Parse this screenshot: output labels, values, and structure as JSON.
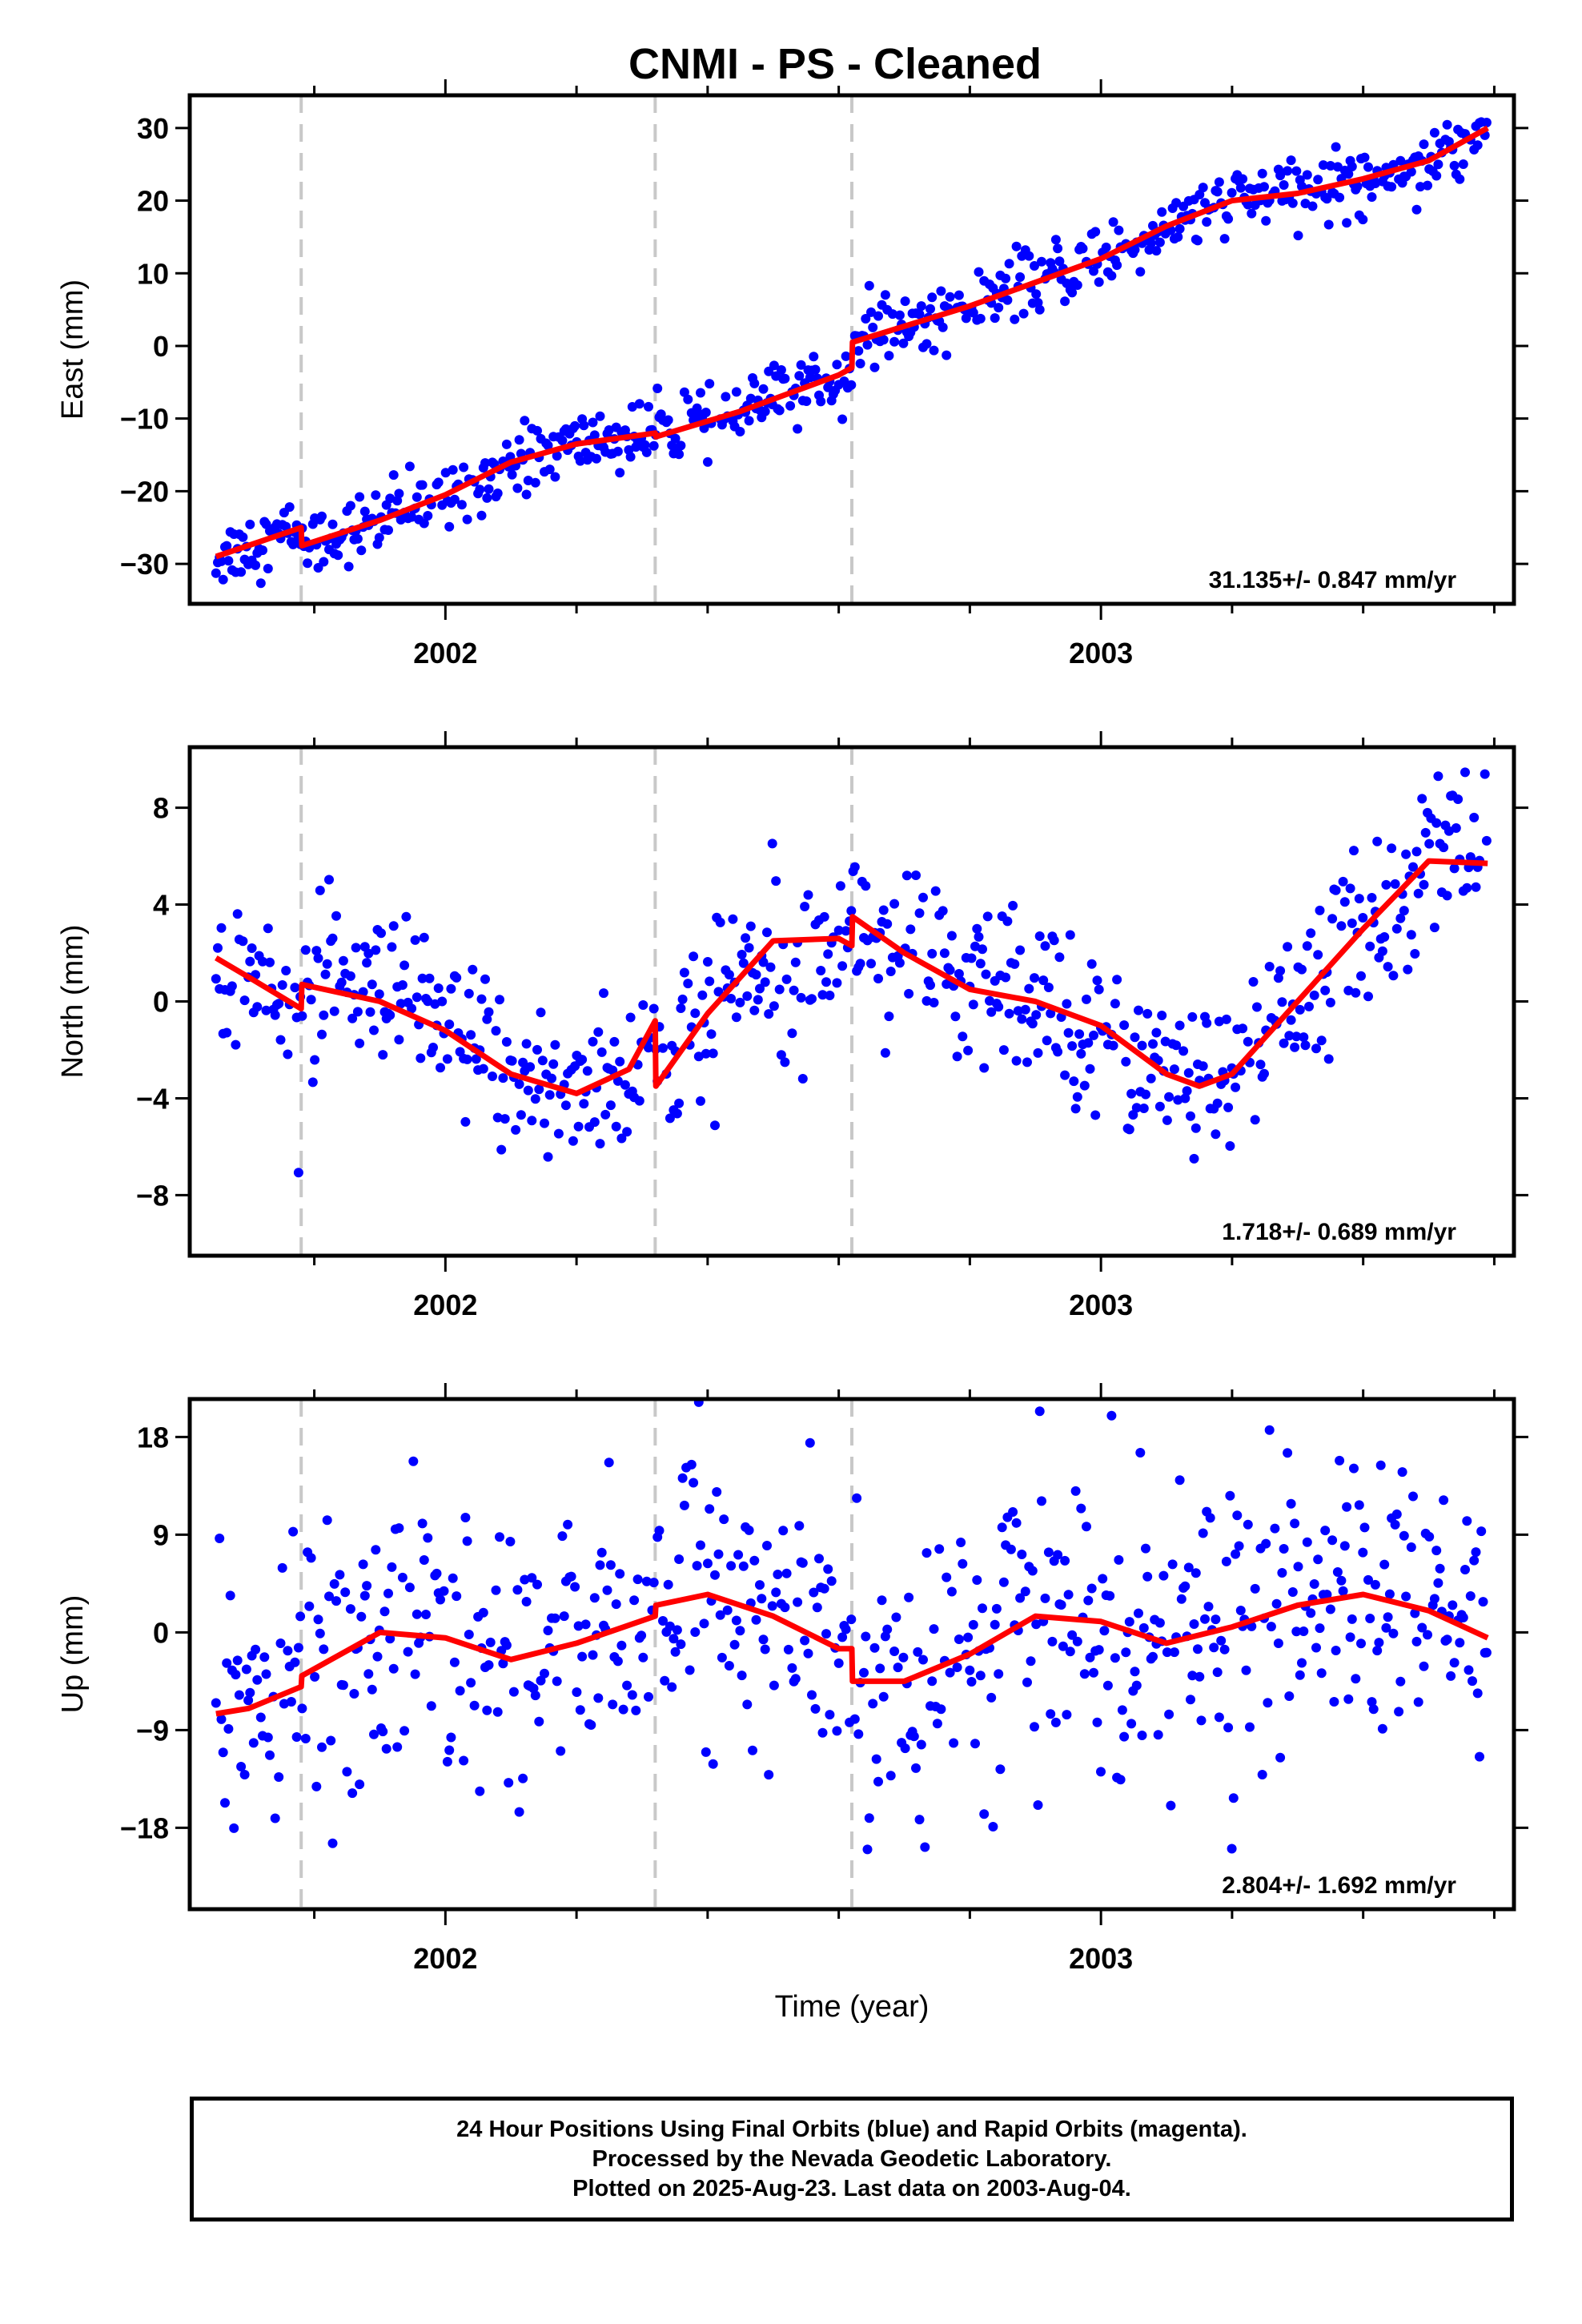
{
  "title": "CNMI  - PS - Cleaned",
  "xlabel": "Time (year)",
  "colors": {
    "points": "#0000ff",
    "model": "#ff0000",
    "steps": "#c8c8c8",
    "frame": "#000000"
  },
  "chart_data": [
    {
      "type": "scatter",
      "component": "East",
      "ylabel": "East (mm)",
      "xlim": [
        2001.61,
        2003.63
      ],
      "ylim": [
        -35.5,
        34.5
      ],
      "x_ticks": [
        2002,
        2003
      ],
      "x_tick_labels": [
        "2002",
        "2003"
      ],
      "y_ticks": [
        -30,
        -20,
        -10,
        0,
        10,
        20,
        30
      ],
      "y_tick_labels": [
        "−30",
        "−20",
        "−10",
        "0",
        "10",
        "20",
        "30"
      ],
      "step_epochs": [
        2001.78,
        2002.32,
        2002.62
      ],
      "rate_text": "31.135+/- 0.847 mm/yr",
      "noise_sd": 2.2,
      "model_x": [
        2001.65,
        2001.78,
        2001.781,
        2001.9,
        2002.0,
        2002.1,
        2002.2,
        2002.32,
        2002.321,
        2002.45,
        2002.6,
        2002.62,
        2002.621,
        2002.8,
        2003.0,
        2003.1,
        2003.2,
        2003.3,
        2003.4,
        2003.5,
        2003.59
      ],
      "model_y": [
        -29,
        -25,
        -27.5,
        -24,
        -20.5,
        -16,
        -13.5,
        -12,
        -12.5,
        -9,
        -4,
        -3,
        0.5,
        5.5,
        12,
        16.5,
        20,
        21,
        23,
        25.5,
        30
      ]
    },
    {
      "type": "scatter",
      "component": "North",
      "ylabel": "North (mm)",
      "xlim": [
        2001.61,
        2003.63
      ],
      "ylim": [
        -10.5,
        10.5
      ],
      "x_ticks": [
        2002,
        2003
      ],
      "x_tick_labels": [
        "2002",
        "2003"
      ],
      "y_ticks": [
        -8,
        -4,
        0,
        4,
        8
      ],
      "y_tick_labels": [
        "−8",
        "−4",
        "0",
        "4",
        "8"
      ],
      "step_epochs": [
        2001.78,
        2002.32,
        2002.62
      ],
      "rate_text": "1.718+/- 0.689 mm/yr",
      "noise_sd": 1.7,
      "model_x": [
        2001.65,
        2001.7,
        2001.78,
        2001.781,
        2001.9,
        2002.0,
        2002.1,
        2002.2,
        2002.28,
        2002.32,
        2002.321,
        2002.4,
        2002.5,
        2002.6,
        2002.62,
        2002.621,
        2002.7,
        2002.8,
        2002.9,
        2003.0,
        2003.1,
        2003.15,
        2003.2,
        2003.3,
        2003.4,
        2003.5,
        2003.59
      ],
      "model_y": [
        1.8,
        1.0,
        -0.3,
        0.7,
        0.0,
        -1.2,
        -3.0,
        -3.8,
        -2.8,
        -0.8,
        -3.5,
        -0.5,
        2.5,
        2.6,
        2.3,
        3.5,
        2.0,
        0.5,
        0.0,
        -1.0,
        -3.0,
        -3.5,
        -3.0,
        0.0,
        3.0,
        5.8,
        5.7
      ]
    },
    {
      "type": "scatter",
      "component": "Up",
      "ylabel": "Up (mm)",
      "xlim": [
        2001.61,
        2003.63
      ],
      "ylim": [
        -25.5,
        21.5
      ],
      "x_ticks": [
        2002,
        2003
      ],
      "x_tick_labels": [
        "2002",
        "2003"
      ],
      "y_ticks": [
        -18,
        -9,
        0,
        9,
        18
      ],
      "y_tick_labels": [
        "−18",
        "−9",
        "0",
        "9",
        "18"
      ],
      "step_epochs": [
        2001.78,
        2002.32,
        2002.62
      ],
      "rate_text": "2.804+/- 1.692 mm/yr",
      "noise_sd": 6.5,
      "model_x": [
        2001.65,
        2001.7,
        2001.78,
        2001.781,
        2001.9,
        2002.0,
        2002.1,
        2002.2,
        2002.32,
        2002.321,
        2002.4,
        2002.5,
        2002.6,
        2002.62,
        2002.621,
        2002.7,
        2002.8,
        2002.9,
        2003.0,
        2003.1,
        2003.2,
        2003.3,
        2003.4,
        2003.5,
        2003.59
      ],
      "model_y": [
        -7.5,
        -7.0,
        -5.0,
        -4.0,
        0.0,
        -0.5,
        -2.5,
        -1.0,
        1.5,
        2.5,
        3.5,
        1.5,
        -1.5,
        -1.5,
        -4.5,
        -4.5,
        -2.0,
        1.5,
        1.0,
        -1.0,
        0.5,
        2.5,
        3.5,
        2.0,
        -0.5
      ]
    }
  ],
  "footer": {
    "line1": "24 Hour Positions Using Final Orbits (blue) and Rapid Orbits (magenta).",
    "line2": "Processed by the Nevada Geodetic Laboratory.",
    "line3": "Plotted on 2025-Aug-23. Last data on 2003-Aug-04."
  }
}
